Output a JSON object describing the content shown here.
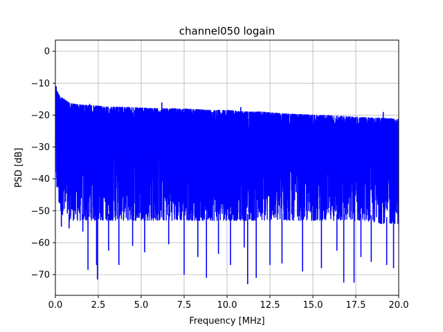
{
  "chart_data": {
    "type": "line",
    "title": "channel050 logain",
    "xlabel": "Frequency [MHz]",
    "ylabel": "PSD [dB]",
    "xlim": [
      0,
      20
    ],
    "ylim": [
      -76.5,
      3.5
    ],
    "grid": true,
    "color": "#0000ff",
    "xticks": [
      0,
      2.5,
      5,
      7.5,
      10,
      12.5,
      15,
      17.5,
      20
    ],
    "xtick_labels": [
      "0.0",
      "2.5",
      "5.0",
      "7.5",
      "10.0",
      "12.5",
      "15.0",
      "17.5",
      "20.0"
    ],
    "yticks": [
      0,
      -10,
      -20,
      -30,
      -40,
      -50,
      -60,
      -70
    ],
    "ytick_labels": [
      "0",
      "−10",
      "−20",
      "−30",
      "−40",
      "−50",
      "−60",
      "−70"
    ],
    "series": [
      {
        "x": [
          0.0,
          0.1,
          0.2,
          0.3,
          0.5,
          0.75,
          1.0,
          1.5,
          2.0,
          2.5,
          3.0,
          4.0,
          5.0,
          6.0,
          7.0,
          8.0,
          9.0,
          10.0,
          11.0,
          12.0,
          13.0,
          14.0,
          15.0,
          16.0,
          17.0,
          18.0,
          19.0,
          20.0
        ],
        "upper_envelope": [
          -11.5,
          -12.5,
          -13.5,
          -14.0,
          -15.0,
          -16.0,
          -16.5,
          -16.8,
          -17.0,
          -17.2,
          -17.5,
          -17.5,
          -17.8,
          -18.0,
          -18.0,
          -18.2,
          -18.5,
          -18.5,
          -19.0,
          -19.0,
          -19.5,
          -19.8,
          -20.0,
          -20.2,
          -20.5,
          -20.8,
          -21.0,
          -21.2
        ],
        "lower_envelope": [
          -40,
          -44,
          -48,
          -50,
          -52,
          -53,
          -53,
          -53,
          -53,
          -53,
          -53,
          -53,
          -53,
          -53,
          -53,
          -53,
          -53,
          -53,
          -53,
          -53,
          -53,
          -53,
          -53,
          -53,
          -53,
          -53,
          -54,
          -54
        ]
      }
    ],
    "deep_dips": [
      {
        "x": 0.35,
        "y": -55.0
      },
      {
        "x": 0.8,
        "y": -55.5
      },
      {
        "x": 1.6,
        "y": -56.5
      },
      {
        "x": 1.9,
        "y": -68.5
      },
      {
        "x": 2.4,
        "y": -67.0
      },
      {
        "x": 2.45,
        "y": -71.5
      },
      {
        "x": 3.1,
        "y": -62.5
      },
      {
        "x": 3.7,
        "y": -67.0
      },
      {
        "x": 4.5,
        "y": -61.0
      },
      {
        "x": 5.2,
        "y": -63.0
      },
      {
        "x": 6.6,
        "y": -60.5
      },
      {
        "x": 7.5,
        "y": -70.0
      },
      {
        "x": 8.3,
        "y": -64.5
      },
      {
        "x": 8.8,
        "y": -71.0
      },
      {
        "x": 9.5,
        "y": -63.5
      },
      {
        "x": 10.2,
        "y": -67.0
      },
      {
        "x": 11.0,
        "y": -61.5
      },
      {
        "x": 11.2,
        "y": -73.0
      },
      {
        "x": 11.7,
        "y": -71.0
      },
      {
        "x": 12.5,
        "y": -67.0
      },
      {
        "x": 13.2,
        "y": -66.5
      },
      {
        "x": 14.4,
        "y": -69.0
      },
      {
        "x": 15.5,
        "y": -68.0
      },
      {
        "x": 16.4,
        "y": -62.5
      },
      {
        "x": 16.8,
        "y": -72.5
      },
      {
        "x": 17.4,
        "y": -72.5
      },
      {
        "x": 17.8,
        "y": -64.5
      },
      {
        "x": 18.4,
        "y": -66.0
      },
      {
        "x": 19.3,
        "y": -67.0
      },
      {
        "x": 19.7,
        "y": -68.0
      }
    ],
    "peak_spikes": [
      {
        "x": 0.05,
        "y": -11.0
      },
      {
        "x": 2.0,
        "y": -16.5
      },
      {
        "x": 6.2,
        "y": -16.0
      },
      {
        "x": 10.8,
        "y": -17.5
      },
      {
        "x": 19.1,
        "y": -19.0
      }
    ]
  }
}
